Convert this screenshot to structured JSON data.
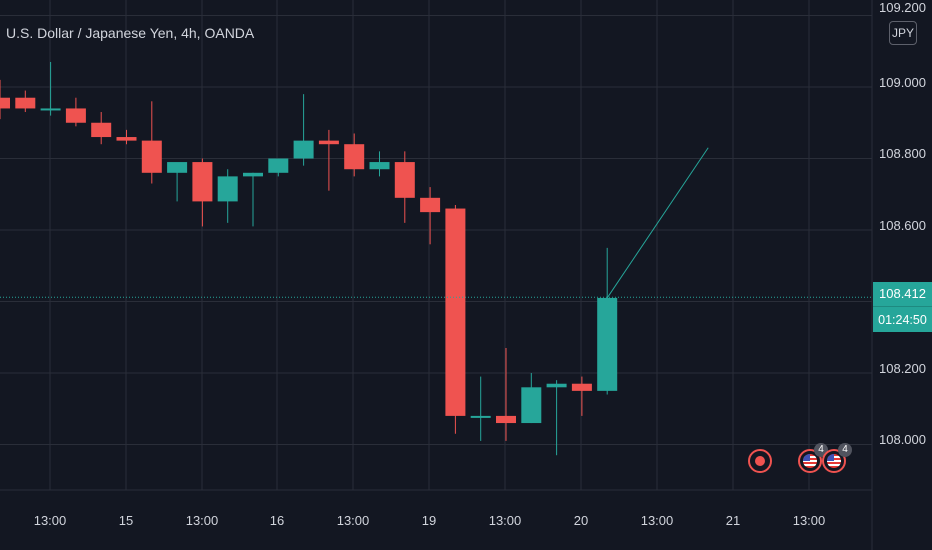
{
  "header": {
    "title": "U.S. Dollar / Japanese Yen, 4h, OANDA",
    "currency_button": "JPY"
  },
  "price_scale": {
    "ticks": [
      "109.200",
      "109.000",
      "108.800",
      "108.600",
      "108.200",
      "108.000"
    ],
    "current_price": "108.412",
    "countdown": "01:24:50"
  },
  "time_scale": {
    "ticks": [
      "13:00",
      "15",
      "13:00",
      "16",
      "13:00",
      "19",
      "13:00",
      "20",
      "13:00",
      "21",
      "13:00"
    ]
  },
  "events": [
    {
      "icon": "economic-event-icon",
      "count": ""
    },
    {
      "icon": "us-flag-icon",
      "count": "4"
    },
    {
      "icon": "us-flag-icon",
      "count": "4"
    }
  ],
  "colors": {
    "background": "#131722",
    "up": "#26a69a",
    "down": "#ef5350",
    "grid": "#2a2e39",
    "text": "#d1d4dc"
  },
  "chart_data": {
    "type": "candlestick",
    "title": "U.S. Dollar / Japanese Yen, 4h, OANDA",
    "timeframe": "4h",
    "ylim": [
      107.86,
      109.22
    ],
    "grid": true,
    "current_price": 108.412,
    "candles": [
      {
        "o": 108.97,
        "h": 109.02,
        "l": 108.91,
        "c": 108.94
      },
      {
        "o": 108.97,
        "h": 108.99,
        "l": 108.93,
        "c": 108.94
      },
      {
        "o": 108.94,
        "h": 109.07,
        "l": 108.92,
        "c": 108.94
      },
      {
        "o": 108.94,
        "h": 108.97,
        "l": 108.89,
        "c": 108.9
      },
      {
        "o": 108.9,
        "h": 108.93,
        "l": 108.84,
        "c": 108.86
      },
      {
        "o": 108.86,
        "h": 108.88,
        "l": 108.84,
        "c": 108.85
      },
      {
        "o": 108.85,
        "h": 108.96,
        "l": 108.73,
        "c": 108.76
      },
      {
        "o": 108.76,
        "h": 108.78,
        "l": 108.68,
        "c": 108.79
      },
      {
        "o": 108.79,
        "h": 108.8,
        "l": 108.61,
        "c": 108.68
      },
      {
        "o": 108.68,
        "h": 108.77,
        "l": 108.62,
        "c": 108.75
      },
      {
        "o": 108.75,
        "h": 108.76,
        "l": 108.61,
        "c": 108.76
      },
      {
        "o": 108.76,
        "h": 108.8,
        "l": 108.75,
        "c": 108.8
      },
      {
        "o": 108.8,
        "h": 108.98,
        "l": 108.78,
        "c": 108.85
      },
      {
        "o": 108.85,
        "h": 108.88,
        "l": 108.71,
        "c": 108.84
      },
      {
        "o": 108.84,
        "h": 108.87,
        "l": 108.75,
        "c": 108.77
      },
      {
        "o": 108.77,
        "h": 108.82,
        "l": 108.75,
        "c": 108.79
      },
      {
        "o": 108.79,
        "h": 108.82,
        "l": 108.62,
        "c": 108.69
      },
      {
        "o": 108.69,
        "h": 108.72,
        "l": 108.56,
        "c": 108.65
      },
      {
        "o": 108.66,
        "h": 108.67,
        "l": 108.03,
        "c": 108.08
      },
      {
        "o": 108.08,
        "h": 108.19,
        "l": 108.01,
        "c": 108.08
      },
      {
        "o": 108.08,
        "h": 108.27,
        "l": 108.01,
        "c": 108.06
      },
      {
        "o": 108.06,
        "h": 108.2,
        "l": 108.06,
        "c": 108.16
      },
      {
        "o": 108.16,
        "h": 108.18,
        "l": 107.97,
        "c": 108.17
      },
      {
        "o": 108.17,
        "h": 108.19,
        "l": 108.08,
        "c": 108.15
      },
      {
        "o": 108.15,
        "h": 108.55,
        "l": 108.14,
        "c": 108.41
      }
    ],
    "drawing": {
      "type": "trend-line",
      "points": [
        108.41,
        108.83
      ]
    },
    "y_ticks": [
      109.2,
      109.0,
      108.8,
      108.6,
      108.2,
      108.0
    ],
    "x_ticks": [
      "13:00",
      "15",
      "13:00",
      "16",
      "13:00",
      "19",
      "13:00",
      "20",
      "13:00",
      "21",
      "13:00"
    ]
  }
}
